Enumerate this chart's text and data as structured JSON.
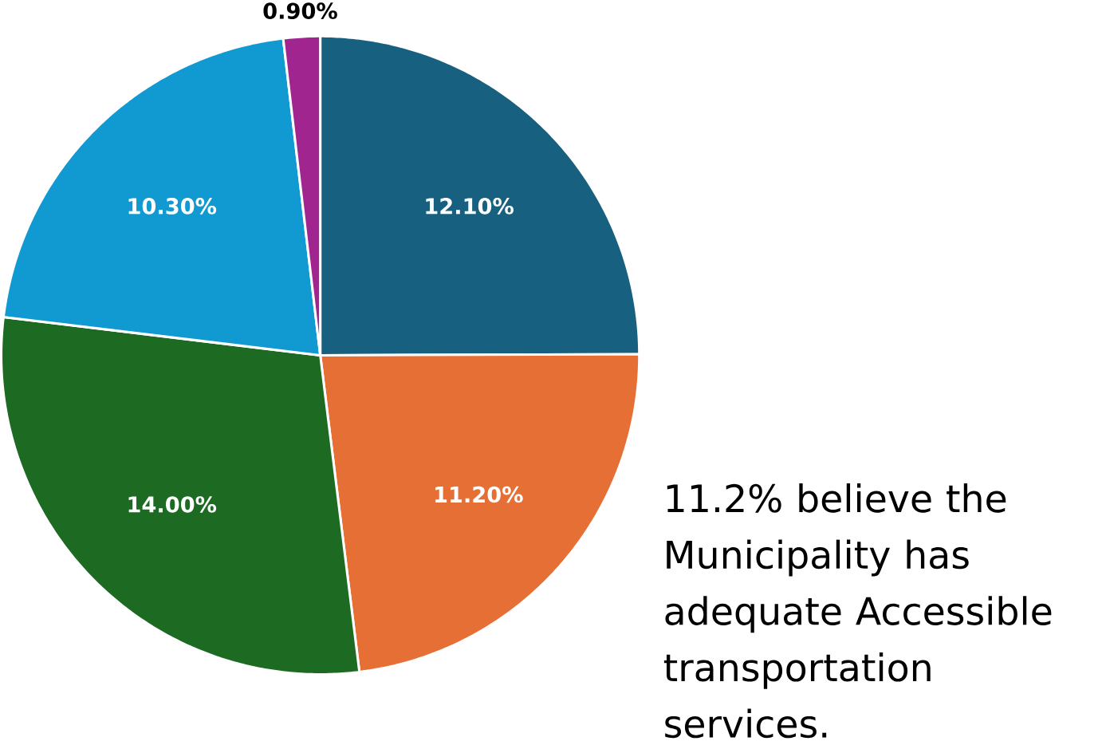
{
  "chart_data": {
    "type": "pie",
    "categories": [
      null,
      null,
      null,
      null,
      null
    ],
    "values": [
      12.1,
      11.2,
      14.0,
      10.3,
      0.9
    ],
    "colors": [
      "#17607f",
      "#e66f35",
      "#1d6a23",
      "#119ad2",
      "#a1258f"
    ],
    "value_labels": [
      "12.10%",
      "11.20%",
      "14.00%",
      "10.30%",
      "0.90%"
    ],
    "annotations": [
      "11.2% believe the Municipality has adequate Accessible transportation services."
    ]
  }
}
